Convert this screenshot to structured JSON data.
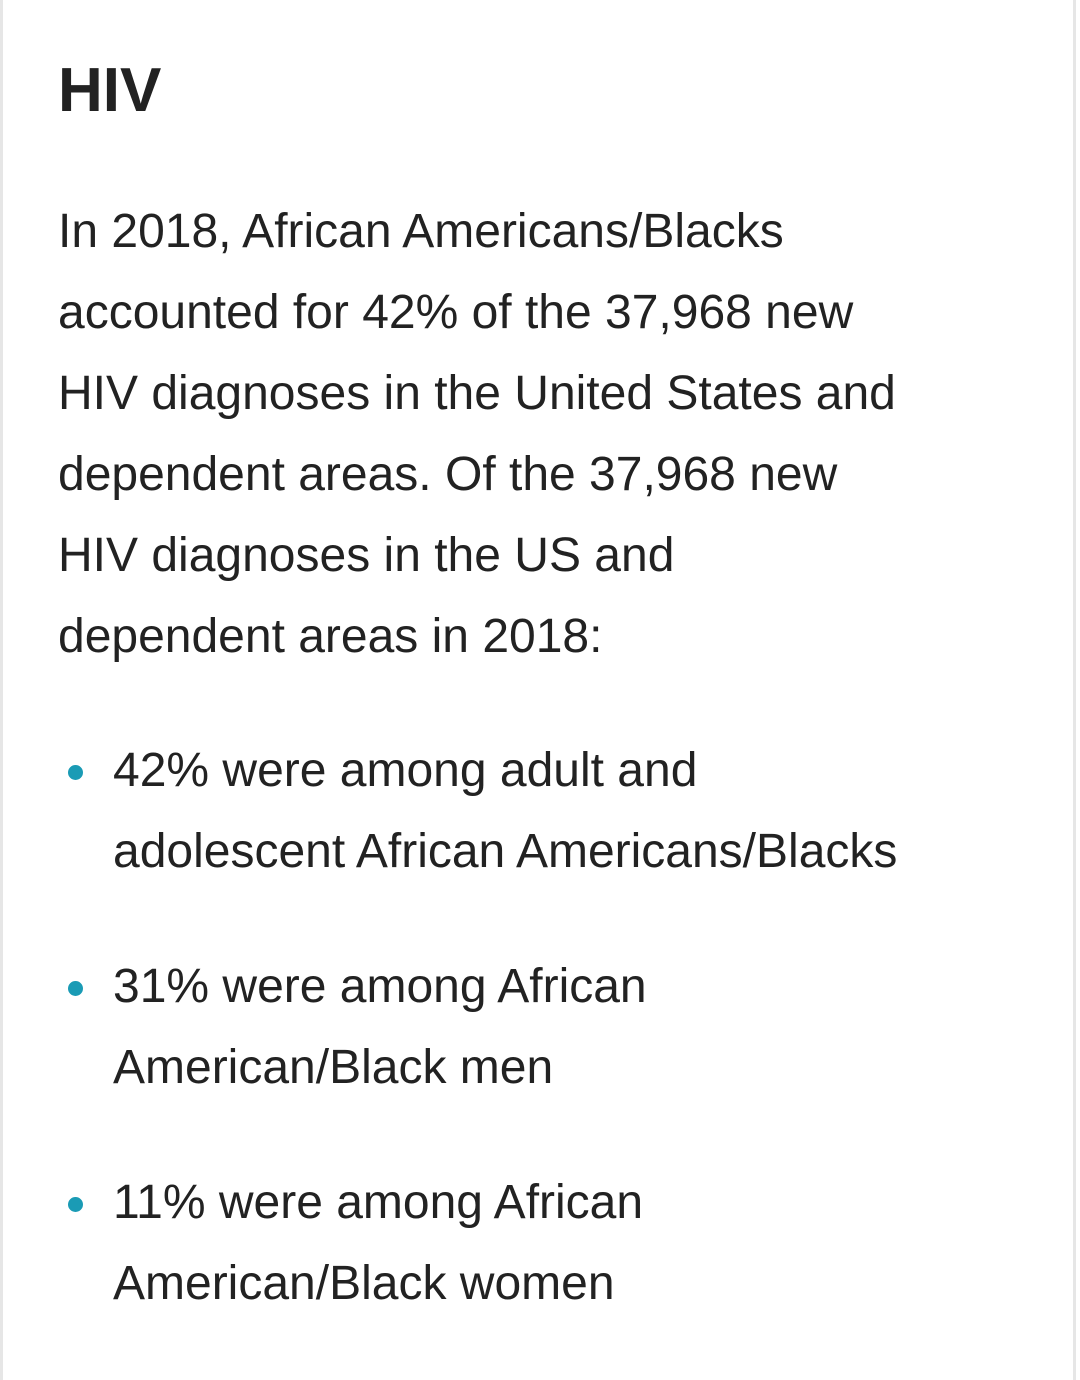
{
  "title": "HIV",
  "paragraph": {
    "lines": [
      "In 2018, African Americans/Blacks",
      "accounted for 42% of the 37,968 new",
      "HIV diagnoses in the United States and",
      "dependent areas. Of the 37,968 new",
      "HIV diagnoses in the US and",
      "dependent areas in 2018:"
    ]
  },
  "bullets": [
    {
      "lines": [
        "42% were among adult and",
        "adolescent African Americans/Blacks"
      ]
    },
    {
      "lines": [
        "31% were among African",
        "American/Black men"
      ]
    },
    {
      "lines": [
        "11% were among African",
        "American/Black women"
      ]
    }
  ]
}
